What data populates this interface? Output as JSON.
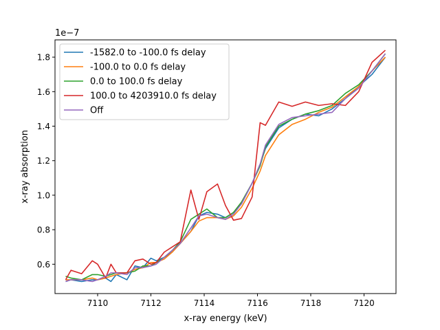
{
  "chart_data": {
    "type": "line",
    "xlabel": "x-ray energy (keV)",
    "ylabel": "x-ray absorption",
    "y_offset_label": "1e−7",
    "y_scale": 1e-07,
    "xlim": [
      7108.4,
      7121.2
    ],
    "ylim": [
      0.43,
      1.9
    ],
    "x_ticks": [
      7110,
      7112,
      7114,
      7116,
      7118,
      7120
    ],
    "x_tick_labels": [
      "7110",
      "7112",
      "7114",
      "7116",
      "7118",
      "7120"
    ],
    "y_ticks": [
      0.6,
      0.8,
      1.0,
      1.2,
      1.4,
      1.6,
      1.8
    ],
    "y_tick_labels": [
      "0.6",
      "0.8",
      "1.0",
      "1.2",
      "1.4",
      "1.6",
      "1.8"
    ],
    "grid": false,
    "legend_position": "top-left",
    "x": [
      7108.8,
      7109.0,
      7109.4,
      7109.8,
      7110.0,
      7110.3,
      7110.5,
      7110.7,
      7111.1,
      7111.4,
      7111.7,
      7112.0,
      7112.2,
      7112.5,
      7112.8,
      7113.1,
      7113.5,
      7113.8,
      7114.1,
      7114.5,
      7114.8,
      7115.1,
      7115.4,
      7115.8,
      7116.1,
      7116.3,
      7116.8,
      7117.3,
      7117.8,
      7118.3,
      7118.8,
      7119.3,
      7119.8,
      7120.3,
      7120.8
    ],
    "series": [
      {
        "name": "-1582.0 to -100.0 fs delay",
        "color": "#1f77b4",
        "values": [
          0.5,
          0.51,
          0.5,
          0.51,
          0.51,
          0.52,
          0.5,
          0.54,
          0.51,
          0.59,
          0.58,
          0.635,
          0.62,
          0.64,
          0.67,
          0.72,
          0.79,
          0.88,
          0.9,
          0.89,
          0.87,
          0.9,
          0.95,
          1.07,
          1.18,
          1.27,
          1.39,
          1.44,
          1.47,
          1.46,
          1.5,
          1.56,
          1.63,
          1.7,
          1.8
        ]
      },
      {
        "name": "-100.0 to 0.0 fs delay",
        "color": "#ff7f0e",
        "values": [
          0.51,
          0.51,
          0.51,
          0.52,
          0.51,
          0.52,
          0.53,
          0.54,
          0.55,
          0.57,
          0.58,
          0.61,
          0.61,
          0.63,
          0.67,
          0.72,
          0.79,
          0.85,
          0.87,
          0.87,
          0.86,
          0.88,
          0.93,
          1.04,
          1.14,
          1.23,
          1.35,
          1.41,
          1.44,
          1.48,
          1.51,
          1.57,
          1.63,
          1.72,
          1.8
        ]
      },
      {
        "name": "0.0 to 100.0 fs delay",
        "color": "#2ca02c",
        "values": [
          0.53,
          0.52,
          0.51,
          0.54,
          0.54,
          0.53,
          0.54,
          0.55,
          0.55,
          0.56,
          0.59,
          0.59,
          0.61,
          0.64,
          0.68,
          0.73,
          0.86,
          0.89,
          0.92,
          0.87,
          0.87,
          0.9,
          0.96,
          1.07,
          1.17,
          1.28,
          1.4,
          1.44,
          1.47,
          1.49,
          1.52,
          1.59,
          1.64,
          1.72,
          1.82
        ]
      },
      {
        "name": "100.0 to 4203910.0 fs delay",
        "color": "#d62728",
        "values": [
          0.51,
          0.565,
          0.545,
          0.62,
          0.6,
          0.52,
          0.6,
          0.55,
          0.55,
          0.62,
          0.63,
          0.6,
          0.61,
          0.67,
          0.7,
          0.73,
          1.03,
          0.86,
          1.02,
          1.065,
          0.94,
          0.855,
          0.865,
          0.99,
          1.42,
          1.405,
          1.54,
          1.515,
          1.54,
          1.52,
          1.53,
          1.52,
          1.6,
          1.77,
          1.84
        ]
      },
      {
        "name": "Off",
        "color": "#9467bd",
        "values": [
          0.5,
          0.51,
          0.51,
          0.5,
          0.51,
          0.53,
          0.55,
          0.55,
          0.54,
          0.58,
          0.58,
          0.59,
          0.6,
          0.64,
          0.68,
          0.72,
          0.81,
          0.88,
          0.89,
          0.87,
          0.86,
          0.89,
          0.95,
          1.07,
          1.18,
          1.29,
          1.41,
          1.45,
          1.46,
          1.47,
          1.48,
          1.56,
          1.62,
          1.72,
          1.82
        ]
      }
    ]
  }
}
